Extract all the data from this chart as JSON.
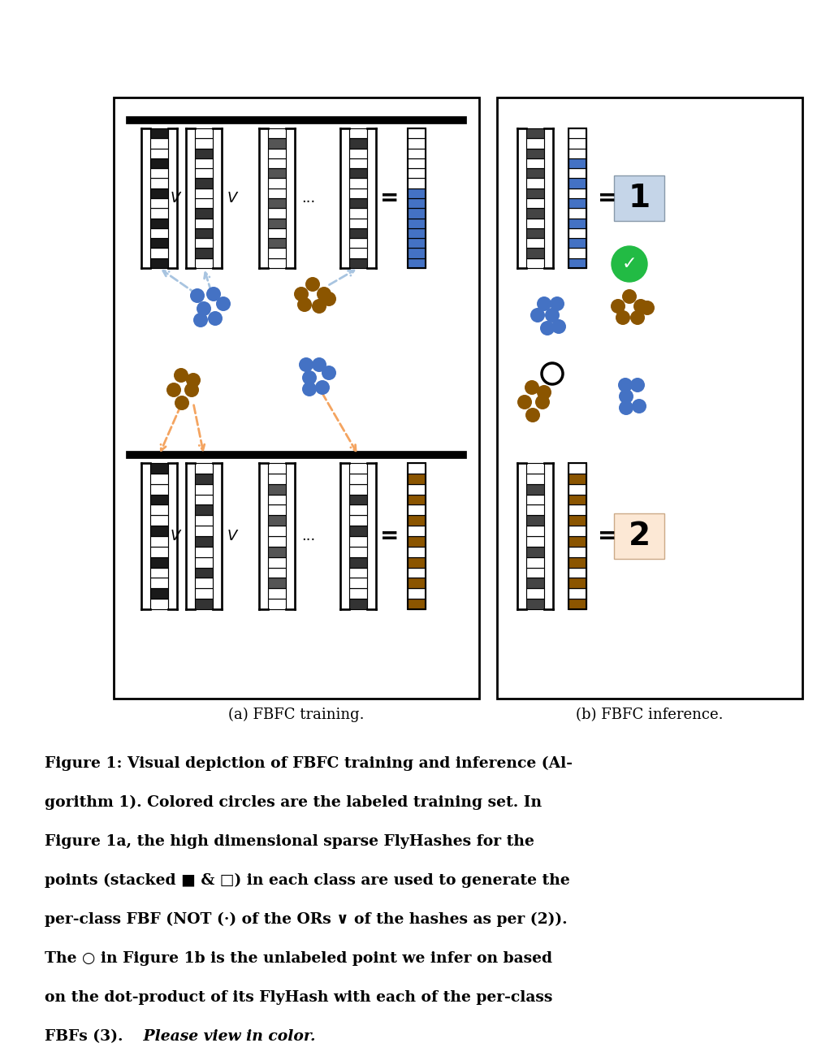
{
  "blue": "#4472c4",
  "brown": "#8B5500",
  "orange_dash": "#F4A460",
  "lblue_dash": "#a8c4e0",
  "green": "#22bb44",
  "label1_bg": "#c5d5e8",
  "label2_bg": "#fce8d5",
  "dark1": "#1a1a1a",
  "dark2": "#444444",
  "dark3": "#666666",
  "caption_a": "(a) FBFC training.",
  "caption_b": "(b) FBFC inference.",
  "cap_lines": [
    "Figure 1: Visual depiction of FBFC training and inference (Al-",
    "gorithm 1). Colored circles are the labeled training set. In",
    "Figure 1a, the high dimensional sparse FlyHashes for the",
    "points (stacked ■ & □) in each class are used to generate the",
    "per-class FBF (NOT (·) of the ORs ∨ of the hashes as per (2)).",
    "The ○ in Figure 1b is the unlabeled point we infer on based",
    "on the dot-product of its FlyHash with each of the per-class",
    "FBFs (3)."
  ],
  "cap_last_italic": " Please view in color."
}
